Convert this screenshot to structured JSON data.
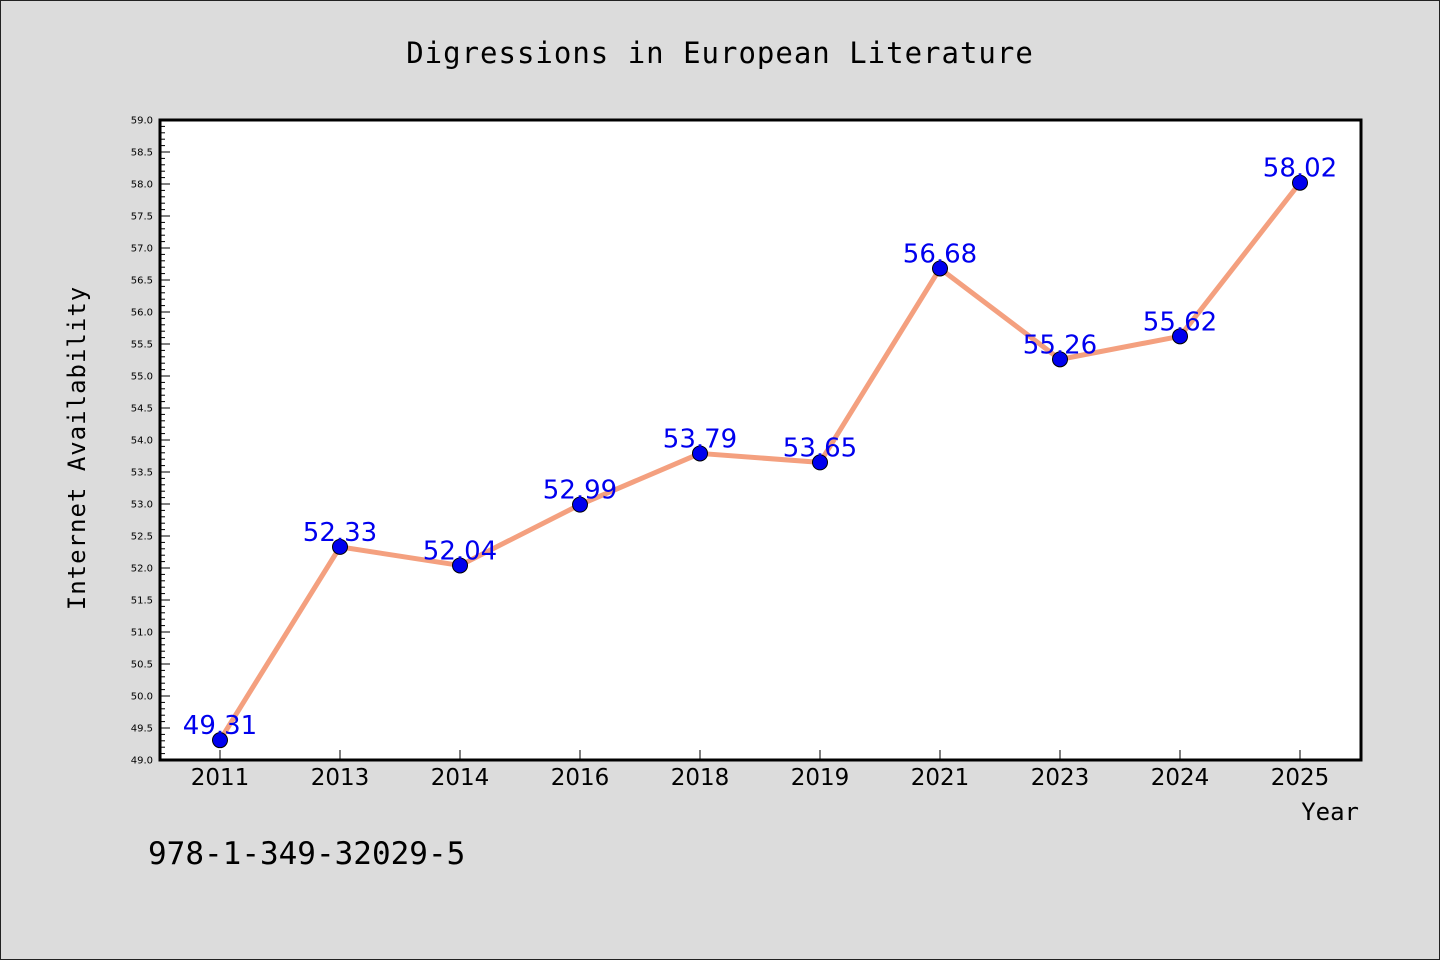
{
  "chart_data": {
    "type": "line",
    "title": "Digressions in European Literature",
    "xlabel": "Year",
    "ylabel": "Internet Availability",
    "categories": [
      "2011",
      "2013",
      "2014",
      "2016",
      "2018",
      "2019",
      "2021",
      "2023",
      "2024",
      "2025"
    ],
    "values": [
      49.31,
      52.33,
      52.04,
      52.99,
      53.79,
      53.65,
      56.68,
      55.26,
      55.62,
      58.02
    ],
    "data_labels": [
      "49.31",
      "52.33",
      "52.04",
      "52.99",
      "53.79",
      "53.65",
      "56.68",
      "55.26",
      "55.62",
      "58.02"
    ],
    "ylim": [
      49.0,
      59.0
    ],
    "yticks": [
      "49.0",
      "49.5",
      "50.0",
      "50.5",
      "51.0",
      "51.5",
      "52.0",
      "52.5",
      "53.0",
      "53.5",
      "54.0",
      "54.5",
      "55.0",
      "55.5",
      "56.0",
      "56.5",
      "57.0",
      "57.5",
      "58.0",
      "58.5",
      "59.0"
    ],
    "grid": false,
    "line_color": "#f4a07f",
    "marker_color": "#0000ee",
    "label_color": "#0000ee",
    "background_color": "#dcdcdc",
    "plot_background": "#ffffff"
  },
  "footnote": "978-1-349-32029-5"
}
